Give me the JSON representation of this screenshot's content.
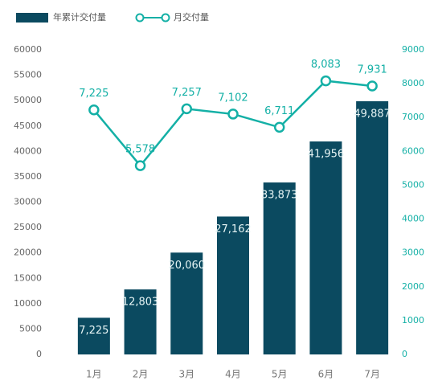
{
  "chart_data": {
    "type": "bar",
    "categories": [
      "1月",
      "2月",
      "3月",
      "4月",
      "5月",
      "6月",
      "7月"
    ],
    "series": [
      {
        "name": "年累计交付量",
        "type": "bar",
        "color": "#0b4a60",
        "values": [
          7225,
          12803,
          20060,
          27162,
          33873,
          41956,
          49887
        ],
        "value_labels": [
          "7,225",
          "12,803",
          "20,060",
          "27,162",
          "33,873",
          "41,956",
          "49,887"
        ]
      },
      {
        "name": "月交付量",
        "type": "line",
        "color": "#14b0a6",
        "axis": "y2",
        "values": [
          7225,
          5578,
          7257,
          7102,
          6711,
          8083,
          7931
        ],
        "value_labels": [
          "7,225",
          "5,578",
          "7,257",
          "7,102",
          "6,711",
          "8,083",
          "7,931"
        ]
      }
    ],
    "ylim": [
      0,
      60000
    ],
    "yticks": [
      0,
      5000,
      10000,
      15000,
      20000,
      25000,
      30000,
      35000,
      40000,
      45000,
      50000,
      55000,
      60000
    ],
    "y2lim": [
      0,
      9000
    ],
    "y2ticks": [
      0,
      1000,
      2000,
      3000,
      4000,
      5000,
      6000,
      7000,
      8000,
      9000
    ],
    "grid": false
  }
}
